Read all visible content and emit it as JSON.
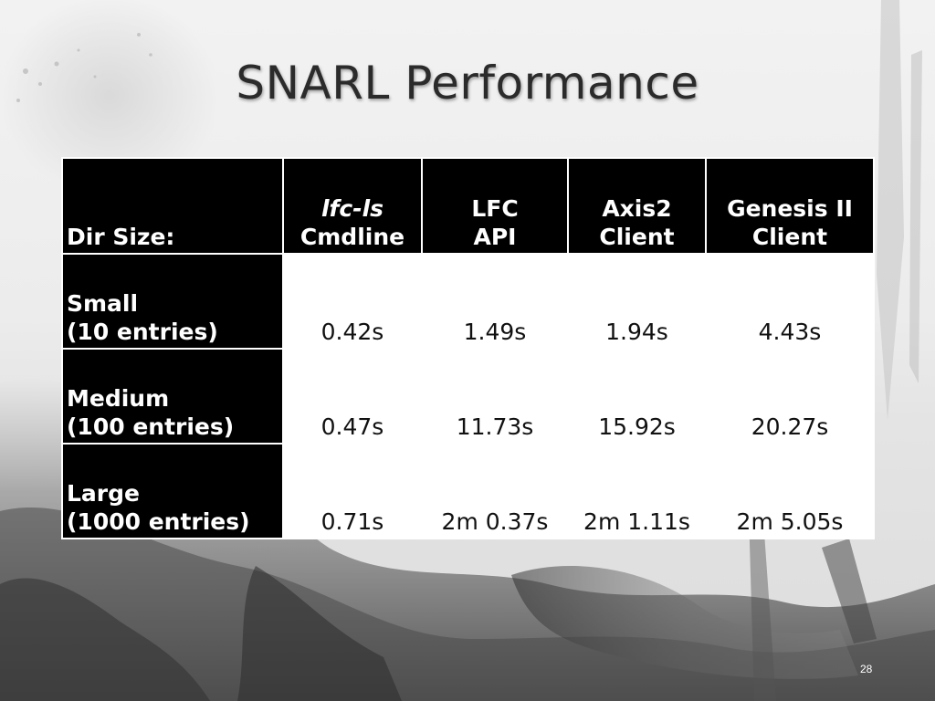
{
  "slide": {
    "title": "SNARL Performance",
    "page_number": "28"
  },
  "table": {
    "corner_label": "Dir Size:",
    "columns": [
      {
        "line1": "lfc-ls",
        "line1_italic": true,
        "line2": "Cmdline"
      },
      {
        "line1": "LFC",
        "line1_italic": false,
        "line2": "API"
      },
      {
        "line1": "Axis2",
        "line1_italic": false,
        "line2": "Client"
      },
      {
        "line1": "Genesis II",
        "line1_italic": false,
        "line2": "Client"
      }
    ],
    "rows": [
      {
        "label_line1": "Small",
        "label_line2": "(10 entries)",
        "values": [
          "0.42s",
          "1.49s",
          "1.94s",
          "4.43s"
        ]
      },
      {
        "label_line1": "Medium",
        "label_line2": "(100 entries)",
        "values": [
          "0.47s",
          "11.73s",
          "15.92s",
          "20.27s"
        ]
      },
      {
        "label_line1": "Large",
        "label_line2": "(1000 entries)",
        "values": [
          "0.71s",
          "2m 0.37s",
          "2m 1.11s",
          "2m 5.05s"
        ]
      }
    ]
  }
}
